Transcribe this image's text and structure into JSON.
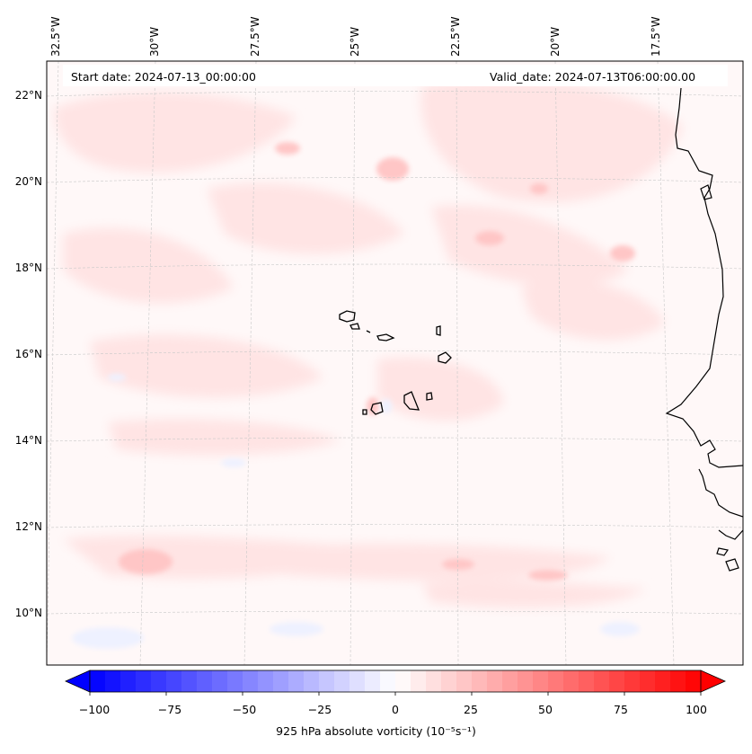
{
  "map": {
    "start_date": "Start date: 2024-07-13_00:00:00",
    "valid_date": "Valid_date: 2024-07-13T06:00:00.00",
    "lon_labels": [
      "32.5°W",
      "30°W",
      "27.5°W",
      "25°W",
      "22.5°W",
      "20°W",
      "17.5°W"
    ],
    "lat_labels": [
      "22°N",
      "20°N",
      "18°N",
      "16°N",
      "14°N",
      "12°N",
      "10°N"
    ],
    "field_colors": {
      "background": "#fff8f8",
      "light_red": "#ffe2e2",
      "medium_red": "#ffc8c8",
      "light_blue": "#eef2ff",
      "coast": "#000000"
    },
    "features": [
      "Cape Verde islands",
      "West African coast"
    ]
  },
  "colorbar": {
    "ticks": [
      "−100",
      "−75",
      "−50",
      "−25",
      "0",
      "25",
      "50",
      "75",
      "100"
    ],
    "range": [
      -100,
      100
    ],
    "label": "925 hPa absolute vorticity (10⁻⁵s⁻¹)",
    "colormap": "bwr",
    "extend": "both"
  }
}
